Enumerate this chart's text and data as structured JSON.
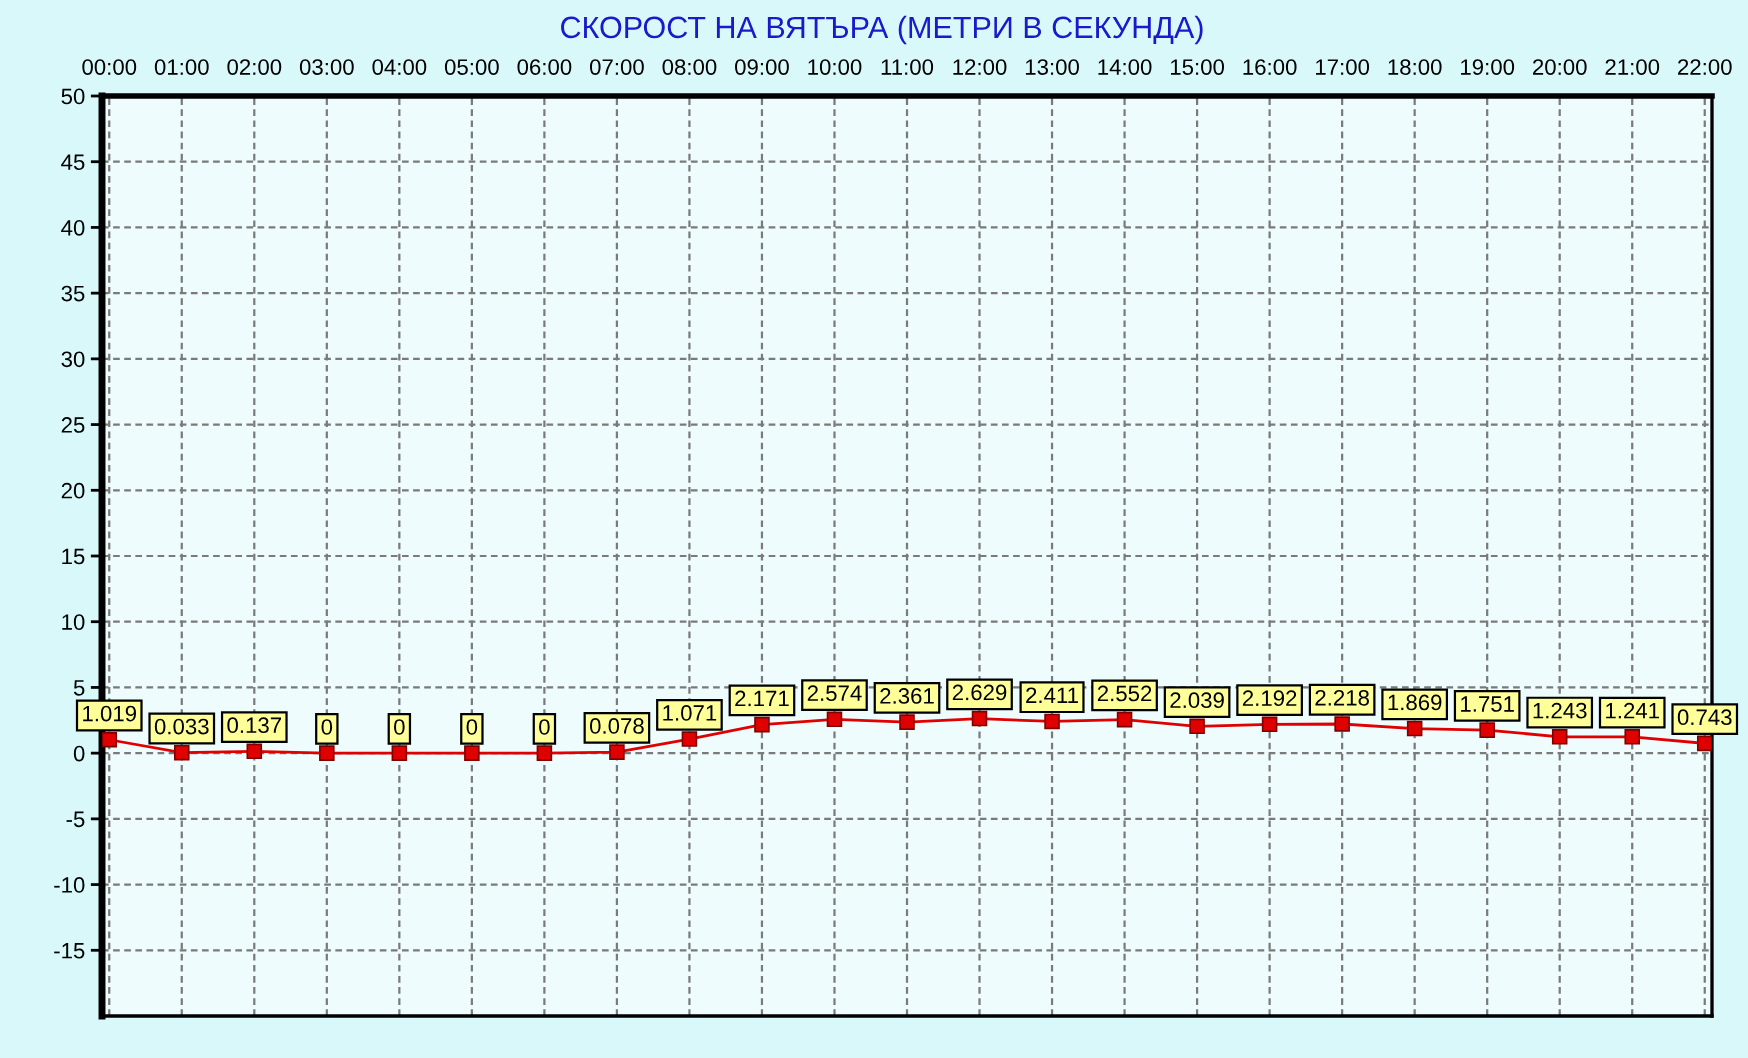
{
  "chart_data": {
    "type": "line",
    "title": "СКОРОСТ НА ВЯТЪРА (МЕТРИ В СЕКУНДА)",
    "x": [
      0,
      1,
      2,
      3,
      4,
      5,
      6,
      7,
      8,
      9,
      10,
      11,
      12,
      13,
      14,
      15,
      16,
      17,
      18,
      19,
      20,
      21,
      22
    ],
    "series": [
      {
        "color": "#e00000",
        "values": [
          1.019,
          0.033,
          0.137,
          0,
          0,
          0,
          0,
          0.078,
          1.071,
          2.171,
          2.574,
          2.361,
          2.629,
          2.411,
          2.552,
          2.039,
          2.192,
          2.218,
          1.869,
          1.751,
          1.243,
          1.241,
          0.743
        ]
      }
    ],
    "xlim": [
      -0.1,
      22.1
    ],
    "xticks": [
      {
        "value": 0,
        "label": "00:00"
      },
      {
        "value": 1,
        "label": "01:00"
      },
      {
        "value": 2,
        "label": "02:00"
      },
      {
        "value": 3,
        "label": "03:00"
      },
      {
        "value": 4,
        "label": "04:00"
      },
      {
        "value": 5,
        "label": "05:00"
      },
      {
        "value": 6,
        "label": "06:00"
      },
      {
        "value": 7,
        "label": "07:00"
      },
      {
        "value": 8,
        "label": "08:00"
      },
      {
        "value": 9,
        "label": "09:00"
      },
      {
        "value": 10,
        "label": "10:00"
      },
      {
        "value": 11,
        "label": "11:00"
      },
      {
        "value": 12,
        "label": "12:00"
      },
      {
        "value": 13,
        "label": "13:00"
      },
      {
        "value": 14,
        "label": "14:00"
      },
      {
        "value": 15,
        "label": "15:00"
      },
      {
        "value": 16,
        "label": "16:00"
      },
      {
        "value": 17,
        "label": "17:00"
      },
      {
        "value": 18,
        "label": "18:00"
      },
      {
        "value": 19,
        "label": "19:00"
      },
      {
        "value": 20,
        "label": "20:00"
      },
      {
        "value": 21,
        "label": "21:00"
      },
      {
        "value": 22,
        "label": "22:00"
      }
    ],
    "ylim": [
      -20,
      50
    ],
    "yticks": [
      -15,
      -10,
      -5,
      0,
      5,
      10,
      15,
      20,
      25,
      30,
      35,
      40,
      45,
      50
    ],
    "grid": true,
    "marker": "square",
    "line_style": "solid",
    "data_labels": true
  }
}
